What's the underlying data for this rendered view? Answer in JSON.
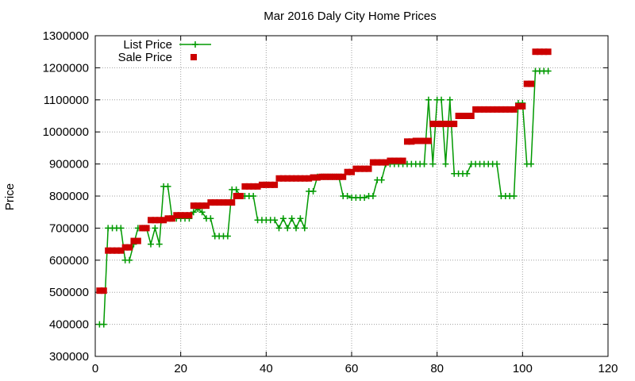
{
  "chart_data": {
    "type": "line",
    "title": "Mar 2016 Daly City Home Prices",
    "xlabel": "",
    "ylabel": "Price",
    "xlim": [
      0,
      120
    ],
    "ylim": [
      300000,
      1300000
    ],
    "x_ticks": [
      0,
      20,
      40,
      60,
      80,
      100,
      120
    ],
    "y_ticks": [
      300000,
      400000,
      500000,
      600000,
      700000,
      800000,
      900000,
      1000000,
      1100000,
      1200000,
      1300000
    ],
    "grid": true,
    "legend_position": "top-left",
    "series": [
      {
        "name": "List Price",
        "color": "#009900",
        "style": "line-plus",
        "x": [
          1,
          2,
          3,
          4,
          5,
          6,
          7,
          8,
          9,
          10,
          11,
          12,
          13,
          14,
          15,
          16,
          17,
          18,
          19,
          20,
          21,
          22,
          23,
          24,
          25,
          26,
          27,
          28,
          29,
          30,
          31,
          32,
          33,
          34,
          35,
          36,
          37,
          38,
          39,
          40,
          41,
          42,
          43,
          44,
          45,
          46,
          47,
          48,
          49,
          50,
          51,
          52,
          53,
          54,
          55,
          56,
          57,
          58,
          59,
          60,
          61,
          62,
          63,
          64,
          65,
          66,
          67,
          68,
          69,
          70,
          71,
          72,
          73,
          74,
          75,
          76,
          77,
          78,
          79,
          80,
          81,
          82,
          83,
          84,
          85,
          86,
          87,
          88,
          89,
          90,
          91,
          92,
          93,
          94,
          95,
          96,
          97,
          98,
          99,
          100,
          101,
          102,
          103,
          104,
          105,
          106
        ],
        "values": [
          400000,
          400000,
          700000,
          700000,
          700000,
          700000,
          600000,
          600000,
          650000,
          700000,
          700000,
          700000,
          650000,
          700000,
          650000,
          830000,
          830000,
          730000,
          730000,
          730000,
          730000,
          730000,
          750000,
          760000,
          750000,
          730000,
          730000,
          675000,
          675000,
          675000,
          675000,
          820000,
          820000,
          800000,
          800000,
          800000,
          800000,
          725000,
          725000,
          725000,
          725000,
          725000,
          700000,
          730000,
          700000,
          730000,
          700000,
          730000,
          700000,
          815000,
          815000,
          860000,
          860000,
          860000,
          860000,
          860000,
          860000,
          800000,
          800000,
          795000,
          795000,
          795000,
          795000,
          800000,
          800000,
          850000,
          850000,
          900000,
          900000,
          900000,
          900000,
          900000,
          900000,
          900000,
          900000,
          900000,
          900000,
          1100000,
          900000,
          1100000,
          1100000,
          900000,
          1100000,
          870000,
          870000,
          870000,
          870000,
          900000,
          900000,
          900000,
          900000,
          900000,
          900000,
          900000,
          800000,
          800000,
          800000,
          800000,
          1090000,
          1090000,
          900000,
          900000,
          1190000,
          1190000,
          1190000,
          1190000
        ]
      },
      {
        "name": "Sale Price",
        "color": "#cc0000",
        "style": "points-square",
        "x": [
          1,
          2,
          3,
          4,
          5,
          6,
          7,
          8,
          9,
          10,
          11,
          12,
          13,
          14,
          15,
          16,
          17,
          18,
          19,
          20,
          21,
          22,
          23,
          24,
          25,
          26,
          27,
          28,
          29,
          30,
          31,
          32,
          33,
          34,
          35,
          36,
          37,
          38,
          39,
          40,
          41,
          42,
          43,
          44,
          45,
          46,
          47,
          48,
          49,
          50,
          51,
          52,
          53,
          54,
          55,
          56,
          57,
          58,
          59,
          60,
          61,
          62,
          63,
          64,
          65,
          66,
          67,
          68,
          69,
          70,
          71,
          72,
          73,
          74,
          75,
          76,
          77,
          78,
          79,
          80,
          81,
          82,
          83,
          84,
          85,
          86,
          87,
          88,
          89,
          90,
          91,
          92,
          93,
          94,
          95,
          96,
          97,
          98,
          99,
          100,
          101,
          102,
          103,
          104,
          105,
          106
        ],
        "values": [
          505000,
          505000,
          630000,
          630000,
          630000,
          630000,
          640000,
          640000,
          660000,
          660000,
          700000,
          700000,
          725000,
          725000,
          725000,
          725000,
          730000,
          730000,
          740000,
          740000,
          740000,
          740000,
          770000,
          770000,
          770000,
          770000,
          780000,
          780000,
          780000,
          780000,
          780000,
          780000,
          800000,
          800000,
          830000,
          830000,
          830000,
          830000,
          835000,
          835000,
          835000,
          835000,
          855000,
          855000,
          855000,
          855000,
          855000,
          855000,
          855000,
          855000,
          858000,
          858000,
          860000,
          860000,
          860000,
          860000,
          860000,
          860000,
          875000,
          875000,
          885000,
          885000,
          885000,
          885000,
          905000,
          905000,
          905000,
          905000,
          910000,
          910000,
          910000,
          910000,
          970000,
          970000,
          972000,
          972000,
          972000,
          972000,
          1025000,
          1025000,
          1025000,
          1025000,
          1025000,
          1025000,
          1050000,
          1050000,
          1050000,
          1050000,
          1070000,
          1070000,
          1070000,
          1070000,
          1070000,
          1070000,
          1070000,
          1070000,
          1070000,
          1070000,
          1080000,
          1080000,
          1150000,
          1150000,
          1250000,
          1250000,
          1250000,
          1250000
        ]
      }
    ]
  }
}
